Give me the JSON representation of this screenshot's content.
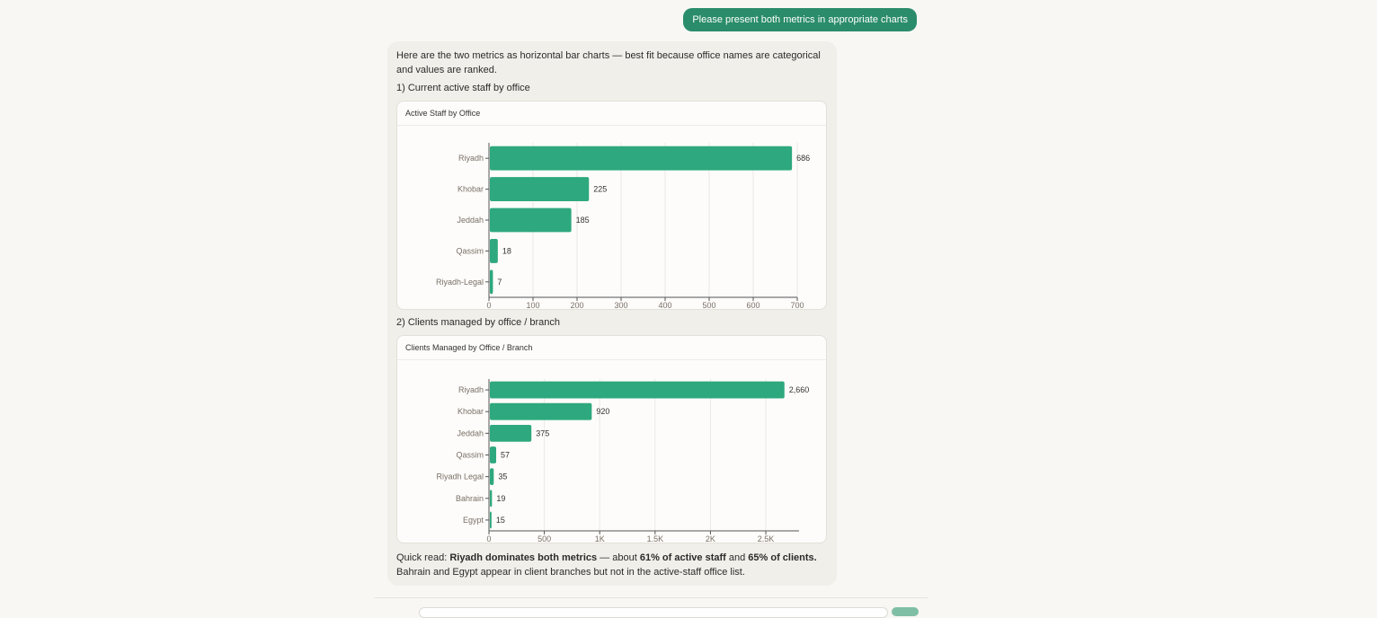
{
  "user_message": "Please present both metrics in appropriate charts",
  "assistant": {
    "intro": "Here are the two metrics as horizontal bar charts — best fit because office names are categorical and values are ranked.",
    "section1_title": "1) Current active staff by office",
    "section2_title": "2) Clients managed by office / branch",
    "quick_read_prefix": "Quick read: ",
    "quick_read_bold1": "Riyadh dominates both metrics",
    "quick_read_mid": " — about ",
    "quick_read_bold2": "61% of active staff",
    "quick_read_and": " and ",
    "quick_read_bold3": "65% of clients.",
    "quick_read_line2": " Bahrain and Egypt appear in client branches but not in the active-staff office list."
  },
  "colors": {
    "bar": "#2ea87e",
    "user_bubble": "#2a8c6a"
  },
  "chart_data": [
    {
      "type": "bar",
      "orientation": "horizontal",
      "title": "Active Staff by Office",
      "categories": [
        "Riyadh",
        "Khobar",
        "Jeddah",
        "Qassim",
        "Riyadh-Legal"
      ],
      "values": [
        686,
        225,
        185,
        18,
        7
      ],
      "value_labels": [
        "686",
        "225",
        "185",
        "18",
        "7"
      ],
      "xlim": [
        0,
        700
      ],
      "xticks": [
        0,
        100,
        200,
        300,
        400,
        500,
        600,
        700
      ],
      "xtick_labels": [
        "0",
        "100",
        "200",
        "300",
        "400",
        "500",
        "600",
        "700"
      ],
      "grid": true,
      "xlabel": "",
      "ylabel": ""
    },
    {
      "type": "bar",
      "orientation": "horizontal",
      "title": "Clients Managed by Office / Branch",
      "categories": [
        "Riyadh",
        "Khobar",
        "Jeddah",
        "Qassim",
        "Riyadh Legal",
        "Bahrain",
        "Egypt"
      ],
      "values": [
        2660,
        920,
        375,
        57,
        35,
        19,
        15
      ],
      "value_labels": [
        "2,660",
        "920",
        "375",
        "57",
        "35",
        "19",
        "15"
      ],
      "xlim": [
        0,
        2800
      ],
      "xticks": [
        0,
        500,
        1000,
        1500,
        2000,
        2500
      ],
      "xtick_labels": [
        "0",
        "500",
        "1K",
        "1.5K",
        "2K",
        "2.5K"
      ],
      "grid": true,
      "xlabel": "",
      "ylabel": ""
    }
  ]
}
